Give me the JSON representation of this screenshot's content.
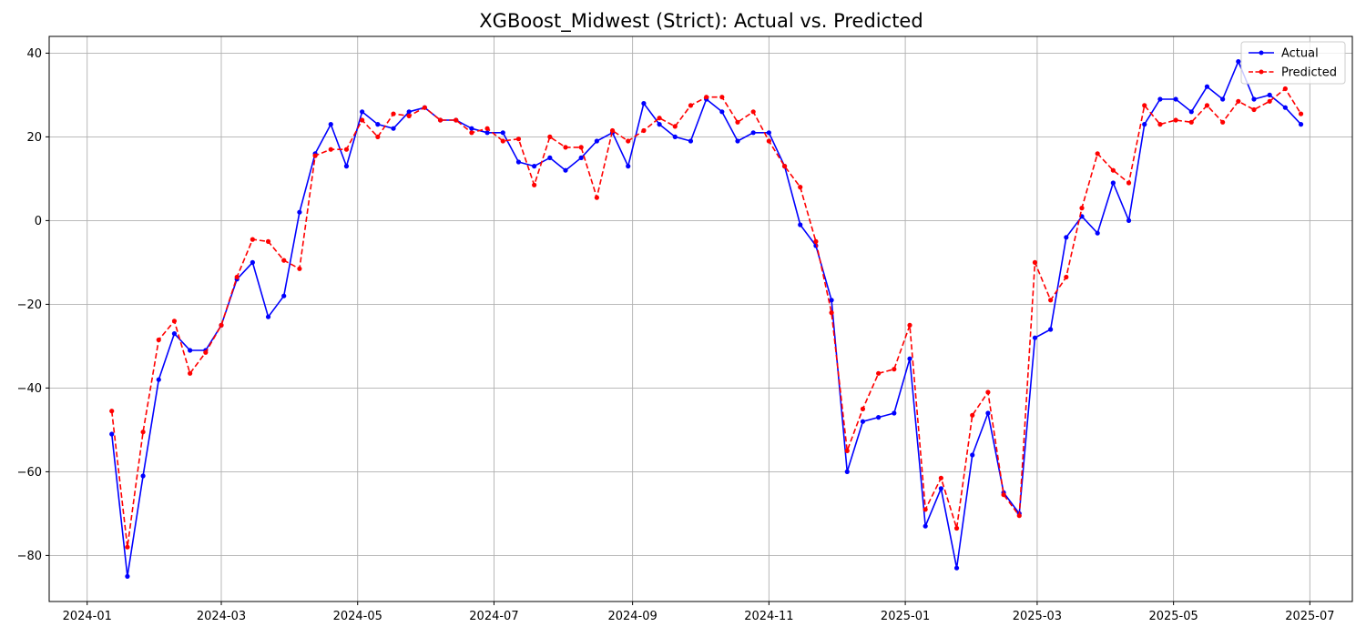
{
  "chart_data": {
    "type": "line",
    "title": "XGBoost_Midwest (Strict): Actual vs. Predicted",
    "xlabel": "",
    "ylabel": "",
    "x_axis_type": "date",
    "xlim": [
      "2023-12-15",
      "2025-07-20"
    ],
    "ylim": [
      -91,
      44
    ],
    "grid": true,
    "legend_position": "top-right",
    "x_tick_labels": [
      "2024-01",
      "2024-03",
      "2024-05",
      "2024-07",
      "2024-09",
      "2024-11",
      "2025-01",
      "2025-03",
      "2025-05",
      "2025-07"
    ],
    "y_ticks": [
      -80,
      -60,
      -40,
      -20,
      0,
      20,
      40
    ],
    "y_tick_labels": [
      "−80",
      "−60",
      "−40",
      "−20",
      "0",
      "20",
      "40"
    ],
    "x": [
      "2024-01-12",
      "2024-01-19",
      "2024-01-26",
      "2024-02-02",
      "2024-02-09",
      "2024-02-16",
      "2024-02-23",
      "2024-03-01",
      "2024-03-08",
      "2024-03-15",
      "2024-03-22",
      "2024-03-29",
      "2024-04-05",
      "2024-04-12",
      "2024-04-19",
      "2024-04-26",
      "2024-05-03",
      "2024-05-10",
      "2024-05-17",
      "2024-05-24",
      "2024-05-31",
      "2024-06-07",
      "2024-06-14",
      "2024-06-21",
      "2024-06-28",
      "2024-07-05",
      "2024-07-12",
      "2024-07-19",
      "2024-07-26",
      "2024-08-02",
      "2024-08-09",
      "2024-08-16",
      "2024-08-23",
      "2024-08-30",
      "2024-09-06",
      "2024-09-13",
      "2024-09-20",
      "2024-09-27",
      "2024-10-04",
      "2024-10-11",
      "2024-10-18",
      "2024-10-25",
      "2024-11-01",
      "2024-11-08",
      "2024-11-15",
      "2024-11-22",
      "2024-11-29",
      "2024-12-06",
      "2024-12-13",
      "2024-12-20",
      "2024-12-27",
      "2025-01-03",
      "2025-01-10",
      "2025-01-17",
      "2025-01-24",
      "2025-01-31",
      "2025-02-07",
      "2025-02-14",
      "2025-02-21",
      "2025-02-28",
      "2025-03-07",
      "2025-03-14",
      "2025-03-21",
      "2025-03-28",
      "2025-04-04",
      "2025-04-11",
      "2025-04-18",
      "2025-04-25",
      "2025-05-02",
      "2025-05-09",
      "2025-05-16",
      "2025-05-23",
      "2025-05-30",
      "2025-06-06",
      "2025-06-13",
      "2025-06-20",
      "2025-06-27"
    ],
    "series": [
      {
        "name": "Actual",
        "color": "#0000ff",
        "line_style": "solid",
        "marker": "circle",
        "values": [
          -51,
          -85,
          -61,
          -38,
          -27,
          -31,
          -31,
          -25,
          -14,
          -10,
          -23,
          -18,
          2,
          16,
          23,
          13,
          26,
          23,
          22,
          26,
          27,
          24,
          24,
          22,
          21,
          21,
          14,
          13,
          15,
          12,
          15,
          19,
          21,
          13,
          28,
          23,
          20,
          19,
          29,
          26,
          19,
          21,
          21,
          13,
          -1,
          -6,
          -19,
          -60,
          -48,
          -47,
          -46,
          -33,
          -73,
          -64,
          -83,
          -56,
          -46,
          -65,
          -70,
          -28,
          -26,
          -4,
          1,
          -3,
          9,
          0,
          23,
          29,
          29,
          26,
          32,
          29,
          38,
          29,
          30,
          27,
          23
        ]
      },
      {
        "name": "Predicted",
        "color": "#ff0000",
        "line_style": "dashed",
        "marker": "circle",
        "values": [
          -45.5,
          -78,
          -50.5,
          -28.5,
          -24,
          -36.5,
          -31.5,
          -25,
          -13.5,
          -4.5,
          -5,
          -9.5,
          -11.5,
          15.5,
          17,
          17,
          24,
          20,
          25.5,
          25,
          27,
          24,
          24,
          21,
          22,
          19,
          19.5,
          8.5,
          20,
          17.5,
          17.5,
          5.5,
          21.5,
          19,
          21.5,
          24.5,
          22.5,
          27.5,
          29.5,
          29.5,
          23.5,
          26,
          19,
          13,
          8,
          -5,
          -22,
          -55,
          -45,
          -36.5,
          -35.5,
          -25,
          -69,
          -61.5,
          -73.5,
          -46.5,
          -41,
          -65.5,
          -70.5,
          -10,
          -19,
          -13.5,
          3,
          16,
          12,
          9,
          27.5,
          23,
          24,
          23.5,
          27.5,
          23.5,
          28.5,
          26.5,
          28.5,
          31.5,
          25.5
        ]
      }
    ]
  }
}
